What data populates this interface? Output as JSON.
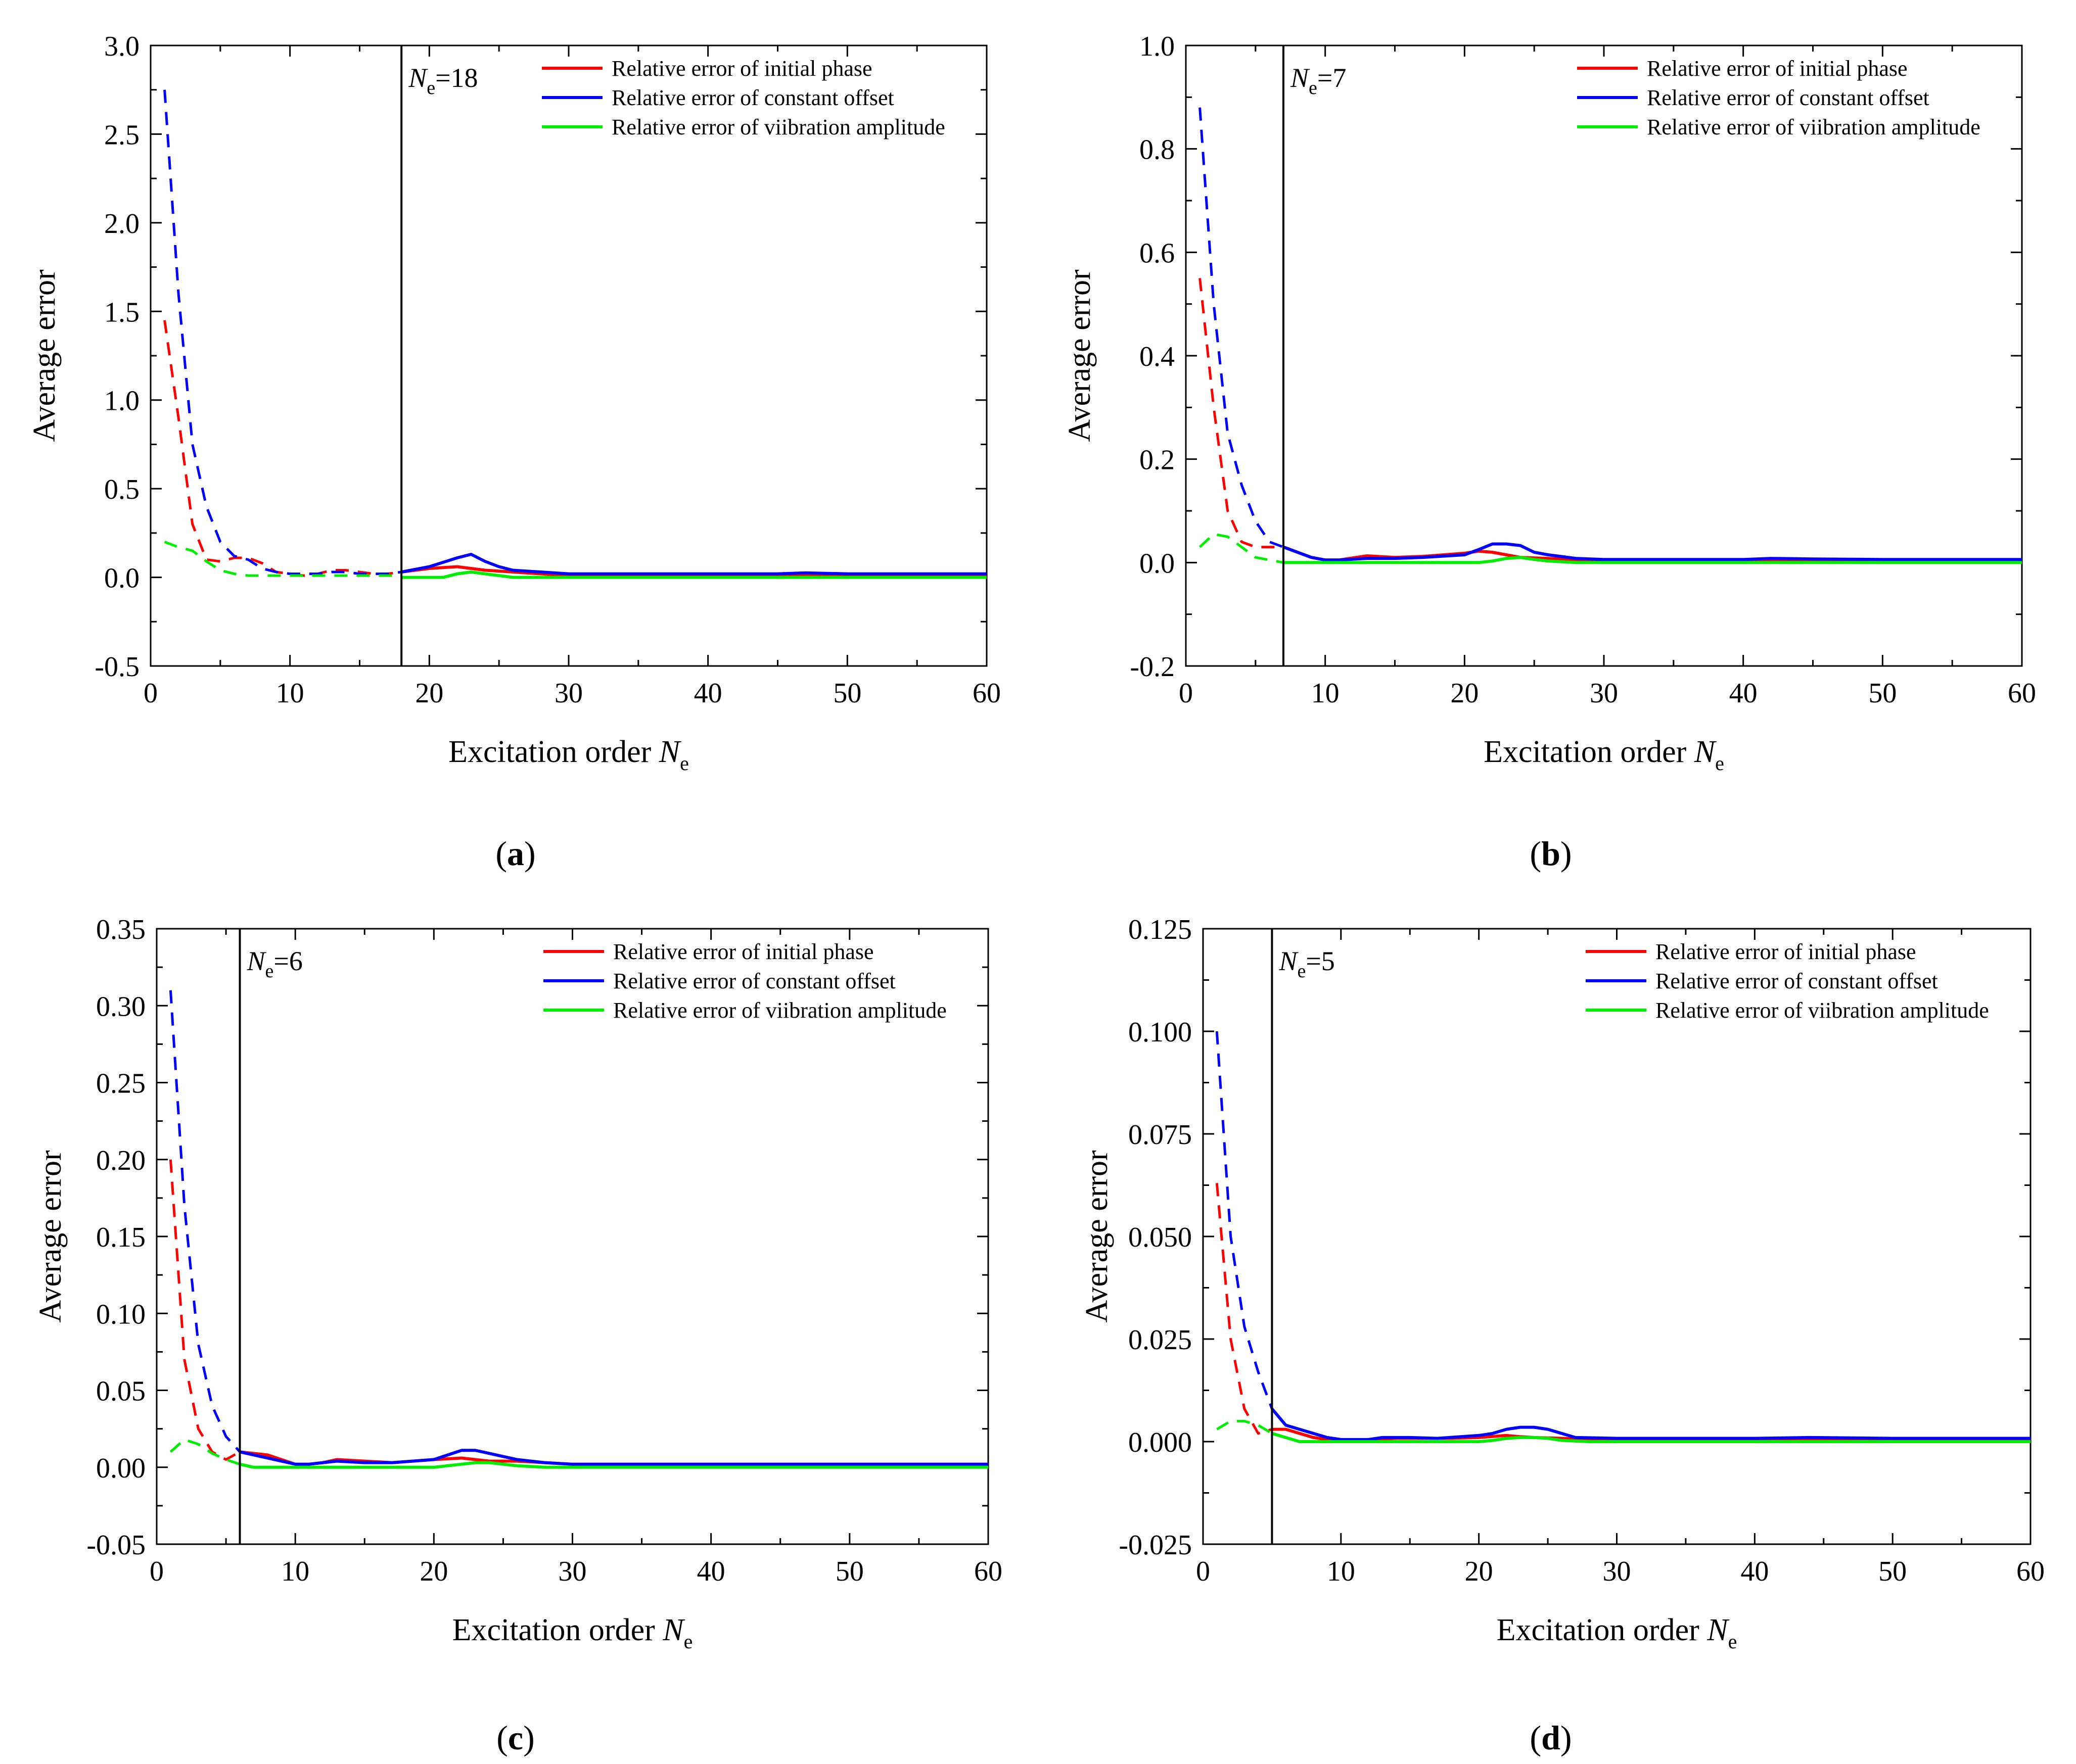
{
  "figure": {
    "panel_labels": [
      "a",
      "b",
      "c",
      "d"
    ]
  },
  "chart_data": [
    {
      "type": "line",
      "panel": "a",
      "xlabel": "Excitation order",
      "xlabel_symbol": "N",
      "xlabel_subscript": "e",
      "ylabel": "Average error",
      "xlim": [
        0,
        60
      ],
      "ylim": [
        -0.5,
        3.0
      ],
      "xticks": [
        0,
        10,
        20,
        30,
        40,
        50,
        60
      ],
      "yticks": [
        "-0.5",
        "0.0",
        "0.5",
        "1.0",
        "1.5",
        "2.0",
        "2.5",
        "3.0"
      ],
      "vline": {
        "x": 18,
        "label_main": "N",
        "label_sub": "e",
        "label_value": "=18"
      },
      "legend_position": "top-right",
      "series": [
        {
          "name": "Relative error of initial phase",
          "color": "#ff0000",
          "dashed": {
            "x": [
              1,
              2,
              3,
              4,
              5,
              6,
              7,
              8,
              9,
              10,
              11,
              12,
              13,
              14,
              15,
              16,
              17,
              18
            ],
            "y": [
              1.45,
              0.9,
              0.3,
              0.1,
              0.09,
              0.11,
              0.11,
              0.08,
              0.03,
              0.02,
              0.01,
              0.02,
              0.04,
              0.04,
              0.03,
              0.02,
              0.02,
              0.03
            ]
          },
          "solid": {
            "x": [
              18,
              20,
              22,
              24,
              26,
              28,
              30,
              35,
              40,
              45,
              50,
              55,
              60
            ],
            "y": [
              0.03,
              0.05,
              0.06,
              0.04,
              0.03,
              0.02,
              0.01,
              0.01,
              0.01,
              0.01,
              0.01,
              0.01,
              0.01
            ]
          }
        },
        {
          "name": "Relative error of constant offset",
          "color": "#0000ff",
          "dashed": {
            "x": [
              1,
              2,
              3,
              4,
              5,
              6,
              7,
              8,
              9,
              10,
              11,
              12,
              13,
              14,
              15,
              16,
              17,
              18
            ],
            "y": [
              2.75,
              1.6,
              0.75,
              0.4,
              0.2,
              0.12,
              0.1,
              0.05,
              0.03,
              0.02,
              0.02,
              0.02,
              0.03,
              0.03,
              0.02,
              0.02,
              0.02,
              0.03
            ]
          },
          "solid": {
            "x": [
              18,
              20,
              22,
              23,
              24,
              25,
              26,
              28,
              30,
              35,
              40,
              45,
              47,
              50,
              55,
              60
            ],
            "y": [
              0.03,
              0.06,
              0.11,
              0.13,
              0.09,
              0.06,
              0.04,
              0.03,
              0.02,
              0.02,
              0.02,
              0.02,
              0.025,
              0.02,
              0.02,
              0.02
            ]
          }
        },
        {
          "name": "Relative error of viibration amplitude",
          "color": "#00ee00",
          "dashed": {
            "x": [
              1,
              2,
              3,
              4,
              5,
              6,
              7,
              8,
              9,
              10,
              11,
              12,
              13,
              14,
              15,
              16,
              17,
              18
            ],
            "y": [
              0.2,
              0.17,
              0.15,
              0.09,
              0.04,
              0.02,
              0.01,
              0.01,
              0.01,
              0.01,
              0.01,
              0.01,
              0.01,
              0.01,
              0.01,
              0.01,
              0.01,
              0.01
            ]
          },
          "solid": {
            "x": [
              18,
              20,
              21,
              22,
              23,
              24,
              25,
              26,
              28,
              30,
              40,
              50,
              60
            ],
            "y": [
              0.0,
              0.0,
              0.0,
              0.02,
              0.03,
              0.02,
              0.01,
              0.0,
              0.0,
              0.0,
              0.0,
              0.0,
              0.0
            ]
          }
        }
      ]
    },
    {
      "type": "line",
      "panel": "b",
      "xlabel": "Excitation order",
      "xlabel_symbol": "N",
      "xlabel_subscript": "e",
      "ylabel": "Average error",
      "xlim": [
        0,
        60
      ],
      "ylim": [
        -0.2,
        1.0
      ],
      "xticks": [
        0,
        10,
        20,
        30,
        40,
        50,
        60
      ],
      "yticks": [
        "-0.2",
        "0.0",
        "0.2",
        "0.4",
        "0.6",
        "0.8",
        "1.0"
      ],
      "vline": {
        "x": 7,
        "label_main": "N",
        "label_sub": "e",
        "label_value": "=7"
      },
      "legend_position": "top-right",
      "series": [
        {
          "name": "Relative error of initial phase",
          "color": "#ff0000",
          "dashed": {
            "x": [
              1,
              2,
              3,
              4,
              5,
              6,
              7
            ],
            "y": [
              0.55,
              0.3,
              0.1,
              0.04,
              0.03,
              0.03,
              0.03
            ]
          },
          "solid": {
            "x": [
              7,
              9,
              10,
              11,
              13,
              15,
              17,
              20,
              21,
              22,
              23,
              24,
              26,
              28,
              30,
              40,
              50,
              60
            ],
            "y": [
              0.03,
              0.01,
              0.005,
              0.005,
              0.013,
              0.01,
              0.012,
              0.018,
              0.022,
              0.02,
              0.015,
              0.01,
              0.008,
              0.005,
              0.005,
              0.005,
              0.005,
              0.005
            ]
          }
        },
        {
          "name": "Relative error of constant offset",
          "color": "#0000ff",
          "dashed": {
            "x": [
              1,
              2,
              3,
              4,
              5,
              6,
              7
            ],
            "y": [
              0.88,
              0.5,
              0.25,
              0.15,
              0.08,
              0.04,
              0.03
            ]
          },
          "solid": {
            "x": [
              7,
              9,
              10,
              11,
              13,
              15,
              17,
              20,
              21,
              22,
              23,
              24,
              25,
              26,
              28,
              30,
              35,
              40,
              42,
              45,
              50,
              55,
              60
            ],
            "y": [
              0.03,
              0.01,
              0.005,
              0.005,
              0.008,
              0.008,
              0.01,
              0.015,
              0.025,
              0.036,
              0.036,
              0.033,
              0.02,
              0.015,
              0.008,
              0.006,
              0.006,
              0.006,
              0.008,
              0.007,
              0.006,
              0.006,
              0.006
            ]
          }
        },
        {
          "name": "Relative error of viibration amplitude",
          "color": "#00ee00",
          "dashed": {
            "x": [
              1,
              2,
              3,
              4,
              5,
              6,
              7
            ],
            "y": [
              0.03,
              0.055,
              0.05,
              0.03,
              0.01,
              0.005,
              0.0
            ]
          },
          "solid": {
            "x": [
              7,
              10,
              15,
              20,
              21,
              22,
              23,
              24,
              25,
              26,
              28,
              30,
              40,
              50,
              60
            ],
            "y": [
              0.0,
              0.0,
              0.0,
              0.0,
              0.0,
              0.003,
              0.008,
              0.01,
              0.006,
              0.003,
              0.0,
              0.0,
              0.0,
              0.0,
              0.0
            ]
          }
        }
      ]
    },
    {
      "type": "line",
      "panel": "c",
      "xlabel": "Excitation order",
      "xlabel_symbol": "N",
      "xlabel_subscript": "e",
      "ylabel": "Average error",
      "xlim": [
        0,
        60
      ],
      "ylim": [
        -0.05,
        0.35
      ],
      "xticks": [
        0,
        10,
        20,
        30,
        40,
        50,
        60
      ],
      "yticks": [
        "-0.05",
        "0.00",
        "0.05",
        "0.10",
        "0.15",
        "0.20",
        "0.25",
        "0.30",
        "0.35"
      ],
      "vline": {
        "x": 6,
        "label_main": "N",
        "label_sub": "e",
        "label_value": "=6"
      },
      "legend_position": "top-right",
      "series": [
        {
          "name": "Relative error of initial phase",
          "color": "#ff0000",
          "dashed": {
            "x": [
              1,
              2,
              3,
              4,
              5,
              6
            ],
            "y": [
              0.2,
              0.07,
              0.025,
              0.01,
              0.005,
              0.01
            ]
          },
          "solid": {
            "x": [
              6,
              8,
              10,
              11,
              12,
              13,
              15,
              17,
              20,
              22,
              24,
              26,
              28,
              30,
              40,
              50,
              60
            ],
            "y": [
              0.01,
              0.008,
              0.002,
              0.002,
              0.003,
              0.005,
              0.004,
              0.003,
              0.005,
              0.006,
              0.004,
              0.004,
              0.003,
              0.002,
              0.002,
              0.002,
              0.002
            ]
          }
        },
        {
          "name": "Relative error of constant offset",
          "color": "#0000ff",
          "dashed": {
            "x": [
              1,
              2,
              3,
              4,
              5,
              6
            ],
            "y": [
              0.31,
              0.17,
              0.08,
              0.04,
              0.02,
              0.01
            ]
          },
          "solid": {
            "x": [
              6,
              8,
              10,
              11,
              12,
              13,
              15,
              17,
              20,
              21,
              22,
              23,
              24,
              25,
              26,
              28,
              30,
              40,
              45,
              50,
              55,
              60
            ],
            "y": [
              0.01,
              0.006,
              0.002,
              0.002,
              0.003,
              0.004,
              0.003,
              0.003,
              0.005,
              0.008,
              0.011,
              0.011,
              0.009,
              0.007,
              0.005,
              0.003,
              0.002,
              0.002,
              0.002,
              0.002,
              0.002,
              0.002
            ]
          }
        },
        {
          "name": "Relative error of viibration amplitude",
          "color": "#00ee00",
          "dashed": {
            "x": [
              1,
              2,
              3,
              4,
              5,
              6
            ],
            "y": [
              0.01,
              0.018,
              0.015,
              0.009,
              0.005,
              0.002
            ]
          },
          "solid": {
            "x": [
              6,
              7,
              10,
              15,
              20,
              21,
              22,
              23,
              24,
              25,
              26,
              28,
              30,
              40,
              50,
              60
            ],
            "y": [
              0.002,
              0.0,
              0.0,
              0.0,
              0.0,
              0.001,
              0.002,
              0.003,
              0.003,
              0.002,
              0.001,
              0.0,
              0.0,
              0.0,
              0.0,
              0.0
            ]
          }
        }
      ]
    },
    {
      "type": "line",
      "panel": "d",
      "xlabel": "Excitation order",
      "xlabel_symbol": "N",
      "xlabel_subscript": "e",
      "ylabel": "Average error",
      "xlim": [
        0,
        60
      ],
      "ylim": [
        -0.025,
        0.125
      ],
      "xticks": [
        0,
        10,
        20,
        30,
        40,
        50,
        60
      ],
      "yticks": [
        "-0.025",
        "0.000",
        "0.025",
        "0.050",
        "0.075",
        "0.100",
        "0.125"
      ],
      "vline": {
        "x": 5,
        "label_main": "N",
        "label_sub": "e",
        "label_value": "=5"
      },
      "legend_position": "top-right",
      "series": [
        {
          "name": "Relative error of initial phase",
          "color": "#ff0000",
          "dashed": {
            "x": [
              1,
              2,
              3,
              4,
              5
            ],
            "y": [
              0.063,
              0.025,
              0.008,
              0.002,
              0.003
            ]
          },
          "solid": {
            "x": [
              5,
              6,
              7,
              8,
              10,
              12,
              14,
              16,
              18,
              20,
              22,
              23,
              24,
              26,
              28,
              30,
              40,
              50,
              60
            ],
            "y": [
              0.003,
              0.003,
              0.002,
              0.001,
              0.0,
              0.0005,
              0.0008,
              0.0008,
              0.0008,
              0.001,
              0.0015,
              0.0012,
              0.001,
              0.0008,
              0.0005,
              0.0005,
              0.0005,
              0.0005,
              0.0005
            ]
          }
        },
        {
          "name": "Relative error of constant offset",
          "color": "#0000ff",
          "dashed": {
            "x": [
              1,
              2,
              3,
              4,
              5
            ],
            "y": [
              0.1,
              0.05,
              0.028,
              0.017,
              0.008
            ]
          },
          "solid": {
            "x": [
              5,
              6,
              7,
              8,
              9,
              10,
              12,
              13,
              15,
              17,
              20,
              21,
              22,
              23,
              24,
              25,
              26,
              27,
              30,
              40,
              44,
              50,
              55,
              60
            ],
            "y": [
              0.008,
              0.004,
              0.003,
              0.002,
              0.001,
              0.0005,
              0.0005,
              0.001,
              0.001,
              0.0008,
              0.0015,
              0.002,
              0.003,
              0.0035,
              0.0035,
              0.003,
              0.002,
              0.001,
              0.0008,
              0.0008,
              0.001,
              0.0008,
              0.0008,
              0.0008
            ]
          }
        },
        {
          "name": "Relative error of viibration amplitude",
          "color": "#00ee00",
          "dashed": {
            "x": [
              1,
              2,
              3,
              4,
              5
            ],
            "y": [
              0.003,
              0.005,
              0.005,
              0.004,
              0.002
            ]
          },
          "solid": {
            "x": [
              5,
              6,
              7,
              8,
              10,
              15,
              20,
              21,
              22,
              23,
              24,
              25,
              26,
              28,
              30,
              40,
              50,
              60
            ],
            "y": [
              0.002,
              0.001,
              0.0,
              0.0,
              0.0,
              0.0,
              0.0,
              0.0003,
              0.0008,
              0.001,
              0.001,
              0.0008,
              0.0003,
              0.0,
              0.0,
              0.0,
              0.0,
              0.0
            ]
          }
        }
      ]
    }
  ]
}
